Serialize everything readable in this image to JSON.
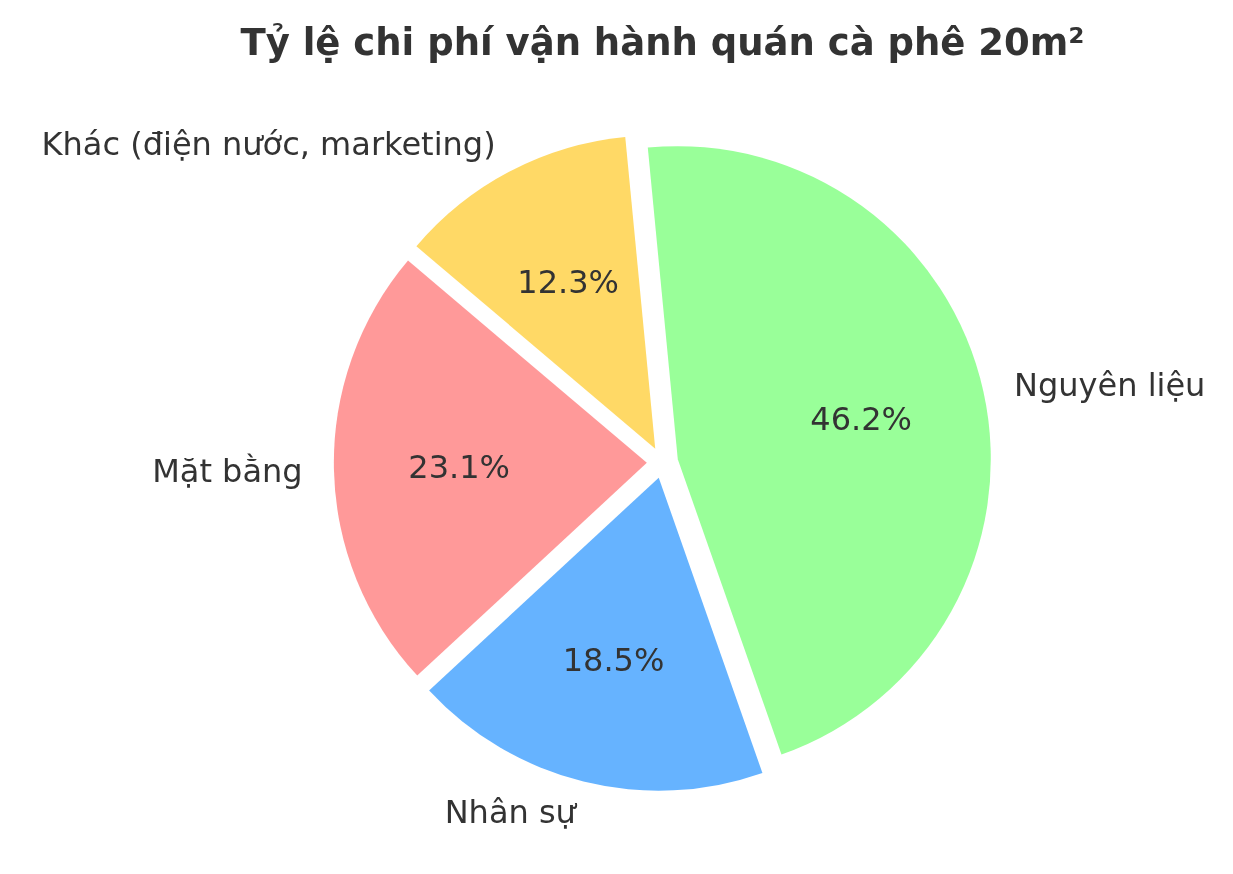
{
  "chart_data": {
    "type": "pie",
    "title": "Tỷ lệ chi phí vận hành quán cà phê 20m²",
    "categories": [
      "Nguyên liệu",
      "Nhân sự",
      "Mặt bằng",
      "Khác (điện nước, marketing)"
    ],
    "values": [
      46.2,
      18.5,
      23.1,
      12.3
    ],
    "colors": [
      "#99ff99",
      "#66b3ff",
      "#ff9999",
      "#ffd966"
    ],
    "value_labels": [
      "46.2%",
      "18.5%",
      "23.1%",
      "12.3%"
    ]
  }
}
